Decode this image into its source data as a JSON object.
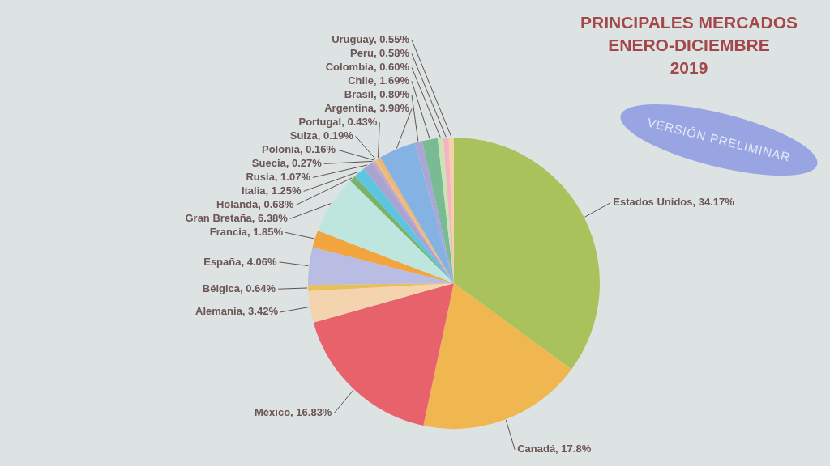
{
  "chart_data": {
    "type": "pie",
    "title": "PRINCIPALES MERCADOS\nENERO-DICIEMBRE\n2019",
    "categories": [
      "Estados Unidos",
      "Canadá",
      "México",
      "Alemania",
      "Bélgica",
      "España",
      "Francia",
      "Gran Bretaña",
      "Holanda",
      "Italia",
      "Rusia",
      "Suecia",
      "Polonia",
      "Suiza",
      "Portugal",
      "Argentina",
      "Brasil",
      "Chile",
      "Colombia",
      "Peru",
      "Uruguay"
    ],
    "values": [
      34.17,
      17.8,
      16.83,
      3.42,
      0.64,
      4.06,
      1.85,
      6.38,
      0.68,
      1.25,
      1.07,
      0.27,
      0.16,
      0.19,
      0.43,
      3.98,
      0.8,
      1.69,
      0.6,
      0.58,
      0.55
    ],
    "value_labels": [
      "34.17%",
      "17.8%",
      "16.83%",
      "3.42%",
      "0.64%",
      "4.06%",
      "1.85%",
      "6.38%",
      "0.68%",
      "1.25%",
      "1.07%",
      "0.27%",
      "0.16%",
      "0.19%",
      "0.43%",
      "3.98%",
      "0.80%",
      "1.69%",
      "0.60%",
      "0.58%",
      "0.55%"
    ],
    "colors": [
      "#a9c25c",
      "#f0b650",
      "#e8626c",
      "#f3d4ae",
      "#e9bf58",
      "#b9bce3",
      "#f2a43f",
      "#bfe6de",
      "#79b36b",
      "#5cc6e0",
      "#a7a4d2",
      "#c5a3c8",
      "#d7b09a",
      "#e8c27d",
      "#f2b46e",
      "#84b2e2",
      "#aba6d9",
      "#79bb93",
      "#cde3b3",
      "#f3b3c3",
      "#f7cfaa"
    ],
    "annotations": [
      "VERSIÓN PRELIMINAR"
    ]
  }
}
